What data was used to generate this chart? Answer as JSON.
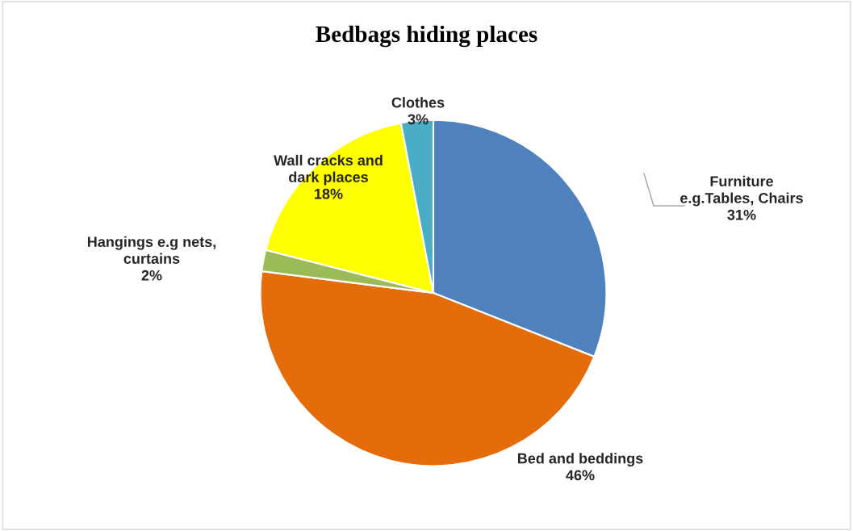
{
  "chart_data": {
    "type": "pie",
    "title": "Bedbags hiding places",
    "categories": [
      "Furniture e.g.Tables, Chairs",
      "Bed and beddings",
      "Hangings e.g nets, curtains",
      "Wall cracks and dark places",
      "Clothes"
    ],
    "values": [
      31,
      46,
      2,
      18,
      3
    ],
    "colors": [
      "#4f81bd",
      "#e46c0a",
      "#9bbb59",
      "#ffff00",
      "#4bacc6"
    ],
    "value_labels": [
      "31%",
      "46%",
      "2%",
      "18%",
      "3%"
    ],
    "legend": false
  }
}
